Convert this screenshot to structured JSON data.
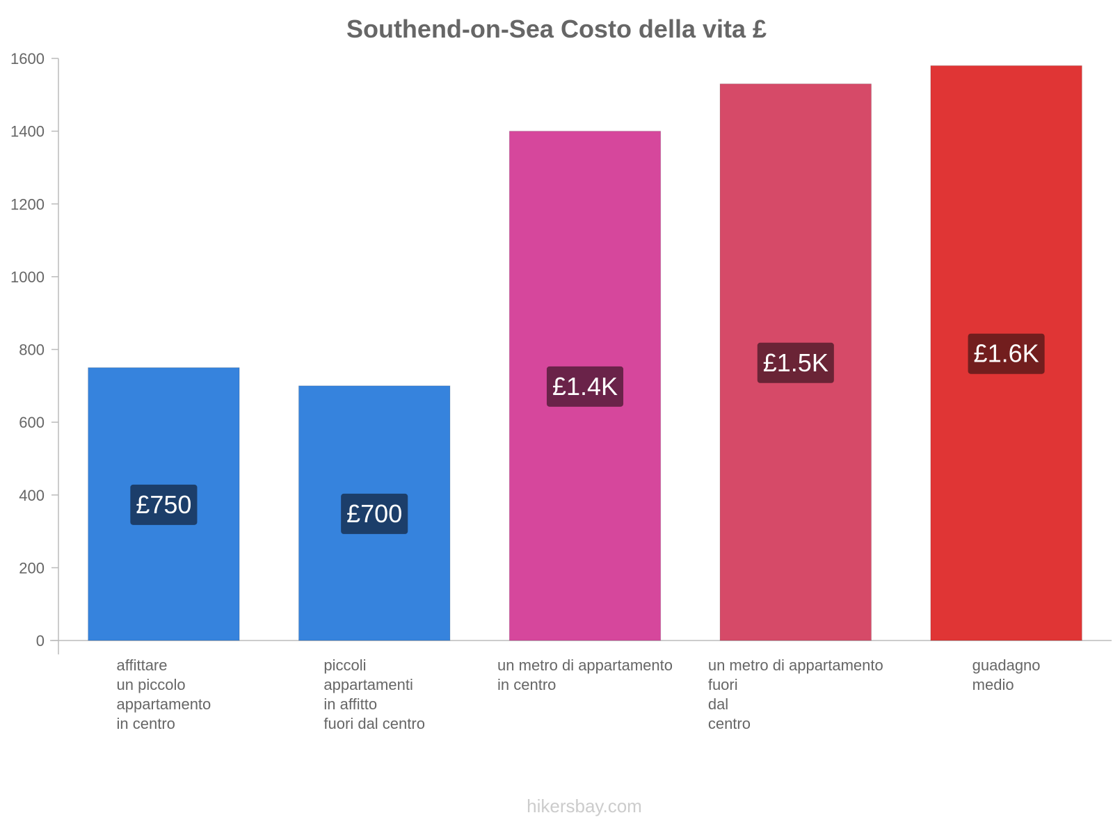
{
  "chart_data": {
    "type": "bar",
    "title": "Southend-on-Sea Costo della vita £",
    "xlabel": "",
    "ylabel": "",
    "ylim": [
      0,
      1600
    ],
    "yticks": [
      0,
      200,
      400,
      600,
      800,
      1000,
      1200,
      1400,
      1600
    ],
    "grid": false,
    "categories": [
      "affittare un piccolo appartamento in centro",
      "piccoli appartamenti in affitto fuori dal centro",
      "un metro di appartamento in centro",
      "un metro di appartamento fuori dal centro",
      "guadagno medio"
    ],
    "category_label_lines": [
      [
        "affittare",
        "un piccolo",
        "appartamento",
        "in centro"
      ],
      [
        "piccoli",
        "appartamenti",
        "in affitto",
        "fuori dal centro"
      ],
      [
        "un metro di appartamento",
        "in centro"
      ],
      [
        "un metro di appartamento",
        "fuori",
        "dal",
        "centro"
      ],
      [
        "guadagno",
        "medio"
      ]
    ],
    "values": [
      750,
      700,
      1400,
      1530,
      1580
    ],
    "value_labels": [
      "£750",
      "£700",
      "£1.4K",
      "£1.5K",
      "£1.6K"
    ],
    "bar_colors": [
      "#3683dd",
      "#3683dd",
      "#d6479c",
      "#d64a68",
      "#e03535"
    ],
    "label_bg_colors": [
      "#1c3e6a",
      "#1c3e6a",
      "#6a2349",
      "#6a2436",
      "#721e1e"
    ]
  },
  "watermark": "hikersbay.com"
}
